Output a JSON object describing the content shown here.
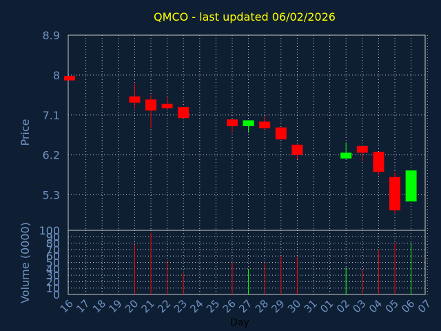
{
  "chart_data": {
    "title": "QMCO - last updated 06/02/2026",
    "price_panel": {
      "type": "candlestick",
      "ylabel": "Price",
      "yticks": [
        "8.9",
        "8",
        "7.1",
        "6.2",
        "5.3"
      ],
      "ylim": [
        4.5,
        8.9
      ],
      "grid": true
    },
    "volume_panel": {
      "type": "bar",
      "ylabel": "Volume (0000)",
      "yticks": [
        "100",
        "90",
        "80",
        "70",
        "60",
        "50",
        "40",
        "30",
        "20",
        "10",
        "0"
      ],
      "ylim": [
        0,
        100
      ],
      "grid": true
    },
    "xlabel": "Day",
    "days": [
      "16",
      "17",
      "18",
      "19",
      "20",
      "21",
      "22",
      "23",
      "24",
      "25",
      "26",
      "27",
      "28",
      "29",
      "30",
      "31",
      "01",
      "02",
      "03",
      "04",
      "05",
      "06",
      "07"
    ],
    "candles": [
      {
        "day": "16",
        "open": 7.98,
        "close": 7.88,
        "high": 7.98,
        "low": 7.88,
        "volume": 0,
        "direction": "down"
      },
      {
        "day": "20",
        "open": 7.52,
        "close": 7.38,
        "high": 7.8,
        "low": 7.25,
        "volume": 78,
        "direction": "down"
      },
      {
        "day": "21",
        "open": 7.45,
        "close": 7.2,
        "high": 7.55,
        "low": 6.8,
        "volume": 96,
        "direction": "down"
      },
      {
        "day": "22",
        "open": 7.35,
        "close": 7.25,
        "high": 7.5,
        "low": 7.22,
        "volume": 53,
        "direction": "down"
      },
      {
        "day": "23",
        "open": 7.28,
        "close": 7.03,
        "high": 7.28,
        "low": 7.03,
        "volume": 33,
        "direction": "down"
      },
      {
        "day": "26",
        "open": 7.0,
        "close": 6.85,
        "high": 7.0,
        "low": 6.7,
        "volume": 50,
        "direction": "down"
      },
      {
        "day": "27",
        "open": 6.85,
        "close": 6.98,
        "high": 6.98,
        "low": 6.7,
        "volume": 40,
        "direction": "up"
      },
      {
        "day": "28",
        "open": 6.95,
        "close": 6.8,
        "high": 7.08,
        "low": 6.75,
        "volume": 50,
        "direction": "down"
      },
      {
        "day": "29",
        "open": 6.82,
        "close": 6.55,
        "high": 6.82,
        "low": 6.55,
        "volume": 60,
        "direction": "down"
      },
      {
        "day": "30",
        "open": 6.43,
        "close": 6.2,
        "high": 6.45,
        "low": 6.1,
        "volume": 58,
        "direction": "down"
      },
      {
        "day": "02",
        "open": 6.12,
        "close": 6.25,
        "high": 6.48,
        "low": 6.12,
        "volume": 42,
        "direction": "up"
      },
      {
        "day": "03",
        "open": 6.4,
        "close": 6.25,
        "high": 6.4,
        "low": 6.05,
        "volume": 38,
        "direction": "down"
      },
      {
        "day": "04",
        "open": 6.27,
        "close": 5.82,
        "high": 6.27,
        "low": 5.75,
        "volume": 70,
        "direction": "down"
      },
      {
        "day": "05",
        "open": 5.7,
        "close": 4.95,
        "high": 5.8,
        "low": 4.88,
        "volume": 80,
        "direction": "down"
      },
      {
        "day": "06",
        "open": 5.15,
        "close": 5.85,
        "high": 5.85,
        "low": 5.15,
        "volume": 80,
        "direction": "up"
      }
    ],
    "colors": {
      "background": "#0f1f33",
      "plot_border": "#c8c8c8",
      "grid": "#c8c8c8",
      "title": "#ffff00",
      "axis_text": "#6f93c4",
      "up": "#00ff00",
      "down": "#ff0000",
      "x_label": "#000000"
    }
  }
}
